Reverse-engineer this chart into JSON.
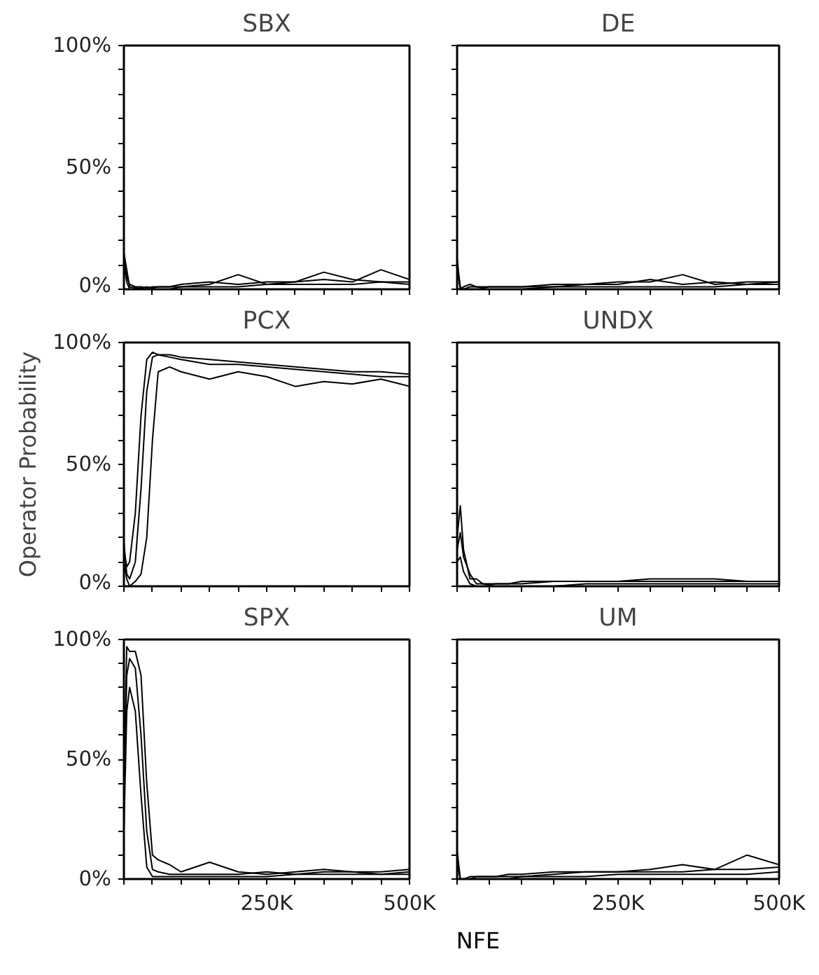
{
  "chart_data": [
    {
      "type": "line",
      "title": "SBX",
      "x": [
        0,
        5000,
        10000,
        20000,
        30000,
        40000,
        50000,
        60000,
        80000,
        100000,
        150000,
        200000,
        250000,
        300000,
        350000,
        400000,
        450000,
        500000
      ],
      "xlim": [
        0,
        500000
      ],
      "ylim": [
        0,
        100
      ],
      "xticks": [
        {
          "value": 0,
          "label": null
        },
        {
          "value": 50000,
          "label": null
        },
        {
          "value": 100000,
          "label": null
        },
        {
          "value": 150000,
          "label": null
        },
        {
          "value": 200000,
          "label": null
        },
        {
          "value": 250000,
          "label": null
        },
        {
          "value": 300000,
          "label": null
        },
        {
          "value": 350000,
          "label": null
        },
        {
          "value": 400000,
          "label": null
        },
        {
          "value": 450000,
          "label": null
        },
        {
          "value": 500000,
          "label": null
        }
      ],
      "yticks": [
        {
          "value": 0,
          "label": "0%"
        },
        {
          "value": 10,
          "label": null
        },
        {
          "value": 20,
          "label": null
        },
        {
          "value": 30,
          "label": null
        },
        {
          "value": 40,
          "label": null
        },
        {
          "value": 50,
          "label": "50%"
        },
        {
          "value": 60,
          "label": null
        },
        {
          "value": 70,
          "label": null
        },
        {
          "value": 80,
          "label": null
        },
        {
          "value": 90,
          "label": null
        },
        {
          "value": 100,
          "label": "100%"
        }
      ],
      "tick_labels": "y",
      "grid": false,
      "marker": "none",
      "line_style": "solid",
      "series": [
        {
          "color": "#000000",
          "values": [
            15,
            8,
            1,
            0.5,
            0.5,
            1,
            0.5,
            1,
            1,
            2,
            3,
            2,
            3,
            3,
            4,
            3,
            8,
            4
          ]
        },
        {
          "color": "#000000",
          "values": [
            12,
            5,
            2,
            1,
            1,
            0.5,
            1,
            1,
            1,
            1,
            2,
            6,
            2,
            3,
            7,
            4,
            3,
            3
          ]
        },
        {
          "color": "#000000",
          "values": [
            10,
            3,
            0,
            0,
            0,
            0,
            0,
            0,
            0,
            1,
            1,
            1,
            2,
            2,
            2,
            2,
            3,
            2
          ]
        }
      ]
    },
    {
      "type": "line",
      "title": "DE",
      "x": [
        0,
        5000,
        10000,
        20000,
        30000,
        40000,
        50000,
        60000,
        80000,
        100000,
        150000,
        200000,
        250000,
        300000,
        350000,
        400000,
        450000,
        500000
      ],
      "xlim": [
        0,
        500000
      ],
      "ylim": [
        0,
        100
      ],
      "xticks": [
        {
          "value": 0,
          "label": null
        },
        {
          "value": 50000,
          "label": null
        },
        {
          "value": 100000,
          "label": null
        },
        {
          "value": 150000,
          "label": null
        },
        {
          "value": 200000,
          "label": null
        },
        {
          "value": 250000,
          "label": null
        },
        {
          "value": 300000,
          "label": null
        },
        {
          "value": 350000,
          "label": null
        },
        {
          "value": 400000,
          "label": null
        },
        {
          "value": 450000,
          "label": null
        },
        {
          "value": 500000,
          "label": null
        }
      ],
      "yticks": [
        {
          "value": 0,
          "label": null
        },
        {
          "value": 10,
          "label": null
        },
        {
          "value": 20,
          "label": null
        },
        {
          "value": 30,
          "label": null
        },
        {
          "value": 40,
          "label": null
        },
        {
          "value": 50,
          "label": null
        },
        {
          "value": 60,
          "label": null
        },
        {
          "value": 70,
          "label": null
        },
        {
          "value": 80,
          "label": null
        },
        {
          "value": 90,
          "label": null
        },
        {
          "value": 100,
          "label": null
        }
      ],
      "tick_labels": false,
      "grid": false,
      "marker": "none",
      "line_style": "solid",
      "series": [
        {
          "color": "#000000",
          "values": [
            13,
            0,
            1,
            2,
            1,
            1,
            1,
            1,
            1,
            1,
            2,
            2,
            3,
            3,
            6,
            2,
            3,
            3
          ]
        },
        {
          "color": "#000000",
          "values": [
            10,
            1,
            0,
            1,
            1,
            0.5,
            1,
            1,
            1,
            1,
            1,
            2,
            2,
            4,
            2,
            3,
            2,
            3
          ]
        },
        {
          "color": "#000000",
          "values": [
            8,
            0,
            0,
            0,
            0,
            0,
            0,
            0,
            0,
            0,
            1,
            1,
            1,
            1,
            1,
            1,
            2,
            2
          ]
        }
      ]
    },
    {
      "type": "line",
      "title": "PCX",
      "ylabel": "Operator Probability",
      "x": [
        0,
        5000,
        10000,
        20000,
        30000,
        40000,
        50000,
        60000,
        80000,
        100000,
        150000,
        200000,
        250000,
        300000,
        350000,
        400000,
        450000,
        500000
      ],
      "xlim": [
        0,
        500000
      ],
      "ylim": [
        0,
        100
      ],
      "xticks": [
        {
          "value": 0,
          "label": null
        },
        {
          "value": 50000,
          "label": null
        },
        {
          "value": 100000,
          "label": null
        },
        {
          "value": 150000,
          "label": null
        },
        {
          "value": 200000,
          "label": null
        },
        {
          "value": 250000,
          "label": null
        },
        {
          "value": 300000,
          "label": null
        },
        {
          "value": 350000,
          "label": null
        },
        {
          "value": 400000,
          "label": null
        },
        {
          "value": 450000,
          "label": null
        },
        {
          "value": 500000,
          "label": null
        }
      ],
      "yticks": [
        {
          "value": 0,
          "label": "0%"
        },
        {
          "value": 10,
          "label": null
        },
        {
          "value": 20,
          "label": null
        },
        {
          "value": 30,
          "label": null
        },
        {
          "value": 40,
          "label": null
        },
        {
          "value": 50,
          "label": "50%"
        },
        {
          "value": 60,
          "label": null
        },
        {
          "value": 70,
          "label": null
        },
        {
          "value": 80,
          "label": null
        },
        {
          "value": 90,
          "label": null
        },
        {
          "value": 100,
          "label": "100%"
        }
      ],
      "tick_labels": "y",
      "grid": false,
      "marker": "none",
      "line_style": "solid",
      "series": [
        {
          "color": "#000000",
          "values": [
            15,
            8,
            10,
            30,
            70,
            93,
            96,
            95,
            95,
            94,
            93,
            92,
            91,
            90,
            89,
            88,
            88,
            87
          ]
        },
        {
          "color": "#000000",
          "values": [
            18,
            5,
            3,
            10,
            40,
            80,
            94,
            95,
            94,
            93,
            91,
            91,
            90,
            89,
            88,
            87,
            86,
            86
          ]
        },
        {
          "color": "#000000",
          "values": [
            10,
            3,
            0,
            2,
            5,
            20,
            60,
            88,
            90,
            88,
            85,
            88,
            86,
            82,
            84,
            83,
            85,
            82
          ]
        }
      ]
    },
    {
      "type": "line",
      "title": "UNDX",
      "x": [
        0,
        5000,
        10000,
        20000,
        30000,
        40000,
        50000,
        60000,
        80000,
        100000,
        150000,
        200000,
        250000,
        300000,
        350000,
        400000,
        450000,
        500000
      ],
      "xlim": [
        0,
        500000
      ],
      "ylim": [
        0,
        100
      ],
      "xticks": [
        {
          "value": 0,
          "label": null
        },
        {
          "value": 50000,
          "label": null
        },
        {
          "value": 100000,
          "label": null
        },
        {
          "value": 150000,
          "label": null
        },
        {
          "value": 200000,
          "label": null
        },
        {
          "value": 250000,
          "label": null
        },
        {
          "value": 300000,
          "label": null
        },
        {
          "value": 350000,
          "label": null
        },
        {
          "value": 400000,
          "label": null
        },
        {
          "value": 450000,
          "label": null
        },
        {
          "value": 500000,
          "label": null
        }
      ],
      "yticks": [
        {
          "value": 0,
          "label": null
        },
        {
          "value": 10,
          "label": null
        },
        {
          "value": 20,
          "label": null
        },
        {
          "value": 30,
          "label": null
        },
        {
          "value": 40,
          "label": null
        },
        {
          "value": 50,
          "label": null
        },
        {
          "value": 60,
          "label": null
        },
        {
          "value": 70,
          "label": null
        },
        {
          "value": 80,
          "label": null
        },
        {
          "value": 90,
          "label": null
        },
        {
          "value": 100,
          "label": null
        }
      ],
      "tick_labels": false,
      "grid": false,
      "marker": "none",
      "line_style": "solid",
      "series": [
        {
          "color": "#000000",
          "values": [
            20,
            33,
            15,
            3,
            3,
            1,
            1,
            1,
            1,
            2,
            2,
            2,
            2,
            3,
            3,
            3,
            2,
            2
          ]
        },
        {
          "color": "#000000",
          "values": [
            15,
            22,
            12,
            5,
            1,
            1,
            0.5,
            1,
            1,
            1,
            2,
            2,
            2,
            2,
            2,
            2,
            2,
            2
          ]
        },
        {
          "color": "#000000",
          "values": [
            10,
            12,
            6,
            1,
            0,
            0,
            0,
            0,
            0,
            0,
            0,
            1,
            1,
            1,
            1,
            1,
            1,
            1
          ]
        }
      ]
    },
    {
      "type": "line",
      "title": "SPX",
      "xlabel": "NFE",
      "x": [
        0,
        5000,
        10000,
        20000,
        30000,
        40000,
        50000,
        60000,
        80000,
        100000,
        150000,
        200000,
        250000,
        300000,
        350000,
        400000,
        450000,
        500000
      ],
      "xlim": [
        0,
        500000
      ],
      "ylim": [
        0,
        100
      ],
      "xticks": [
        {
          "value": 0,
          "label": null
        },
        {
          "value": 50000,
          "label": null
        },
        {
          "value": 100000,
          "label": null
        },
        {
          "value": 150000,
          "label": null
        },
        {
          "value": 200000,
          "label": null
        },
        {
          "value": 250000,
          "label": "250K"
        },
        {
          "value": 300000,
          "label": null
        },
        {
          "value": 350000,
          "label": null
        },
        {
          "value": 400000,
          "label": null
        },
        {
          "value": 450000,
          "label": null
        },
        {
          "value": 500000,
          "label": "500K"
        }
      ],
      "yticks": [
        {
          "value": 0,
          "label": "0%"
        },
        {
          "value": 10,
          "label": null
        },
        {
          "value": 20,
          "label": null
        },
        {
          "value": 30,
          "label": null
        },
        {
          "value": 40,
          "label": null
        },
        {
          "value": 50,
          "label": "50%"
        },
        {
          "value": 60,
          "label": null
        },
        {
          "value": 70,
          "label": null
        },
        {
          "value": 80,
          "label": null
        },
        {
          "value": 90,
          "label": null
        },
        {
          "value": 100,
          "label": "100%"
        }
      ],
      "grid": false,
      "marker": "none",
      "line_style": "solid",
      "series": [
        {
          "color": "#000000",
          "values": [
            40,
            97,
            95,
            95,
            85,
            40,
            10,
            8,
            6,
            3,
            7,
            3,
            2,
            3,
            4,
            3,
            3,
            4
          ]
        },
        {
          "color": "#000000",
          "values": [
            30,
            85,
            92,
            88,
            60,
            20,
            4,
            3,
            2,
            2,
            2,
            2,
            3,
            2,
            3,
            3,
            2,
            3
          ]
        },
        {
          "color": "#000000",
          "values": [
            20,
            70,
            80,
            70,
            35,
            5,
            1,
            1,
            1,
            1,
            1,
            1,
            1,
            2,
            2,
            2,
            2,
            2
          ]
        }
      ]
    },
    {
      "type": "line",
      "title": "UM",
      "x": [
        0,
        5000,
        10000,
        20000,
        30000,
        40000,
        50000,
        60000,
        80000,
        100000,
        150000,
        200000,
        250000,
        300000,
        350000,
        400000,
        450000,
        500000
      ],
      "xlim": [
        0,
        500000
      ],
      "ylim": [
        0,
        100
      ],
      "xticks": [
        {
          "value": 0,
          "label": null
        },
        {
          "value": 50000,
          "label": null
        },
        {
          "value": 100000,
          "label": null
        },
        {
          "value": 150000,
          "label": null
        },
        {
          "value": 200000,
          "label": null
        },
        {
          "value": 250000,
          "label": "250K"
        },
        {
          "value": 300000,
          "label": null
        },
        {
          "value": 350000,
          "label": null
        },
        {
          "value": 400000,
          "label": null
        },
        {
          "value": 450000,
          "label": null
        },
        {
          "value": 500000,
          "label": "500K"
        }
      ],
      "yticks": [
        {
          "value": 0,
          "label": null
        },
        {
          "value": 10,
          "label": null
        },
        {
          "value": 20,
          "label": null
        },
        {
          "value": 30,
          "label": null
        },
        {
          "value": 40,
          "label": null
        },
        {
          "value": 50,
          "label": null
        },
        {
          "value": 60,
          "label": null
        },
        {
          "value": 70,
          "label": null
        },
        {
          "value": 80,
          "label": null
        },
        {
          "value": 90,
          "label": null
        },
        {
          "value": 100,
          "label": null
        }
      ],
      "tick_labels": "x",
      "grid": false,
      "marker": "none",
      "line_style": "solid",
      "series": [
        {
          "color": "#000000",
          "values": [
            12,
            0,
            0,
            1,
            1,
            1,
            1,
            1,
            2,
            2,
            3,
            3,
            3,
            4,
            6,
            4,
            10,
            6
          ]
        },
        {
          "color": "#000000",
          "values": [
            9,
            0,
            0,
            0,
            1,
            1,
            1,
            1,
            1,
            1,
            2,
            3,
            3,
            3,
            3,
            4,
            4,
            5
          ]
        },
        {
          "color": "#000000",
          "values": [
            6,
            0,
            0,
            0,
            0,
            0,
            0,
            0,
            0,
            1,
            1,
            1,
            2,
            2,
            2,
            2,
            2,
            3
          ]
        }
      ]
    }
  ]
}
